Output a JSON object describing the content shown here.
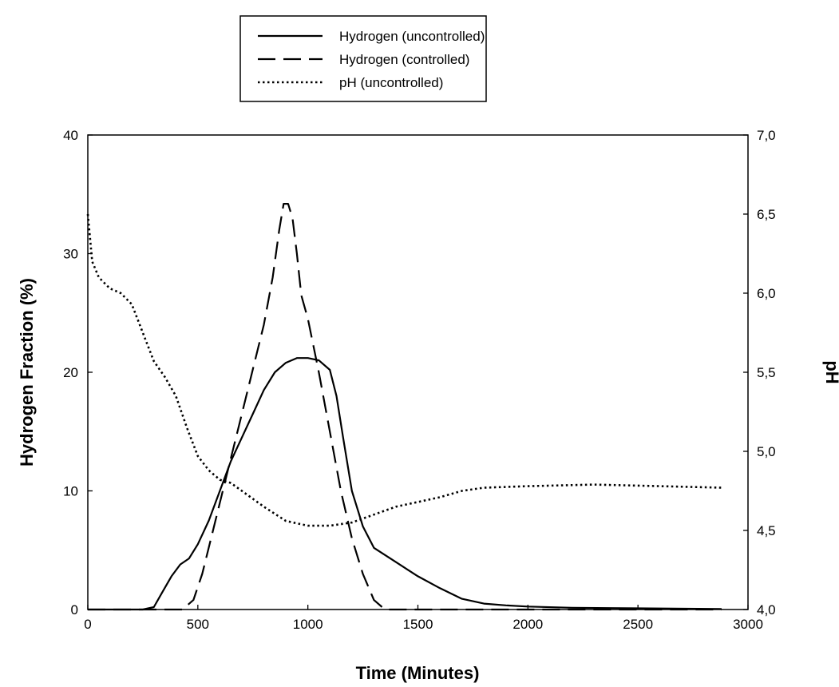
{
  "chart_data": {
    "type": "line",
    "title": "",
    "xlabel": "Time (Minutes)",
    "ylabel": "Hydrogen Fraction (%)",
    "y2label": "pH",
    "xlim": [
      0,
      3000
    ],
    "ylim": [
      0,
      40
    ],
    "y2lim": [
      4.0,
      7.0
    ],
    "xticks": [
      "0",
      "500",
      "1000",
      "1500",
      "2000",
      "2500",
      "3000"
    ],
    "yticks": [
      "0",
      "10",
      "20",
      "30",
      "40"
    ],
    "y2ticks": [
      "4,0",
      "4,5",
      "5,0",
      "5,5",
      "6,0",
      "6,5",
      "7,0"
    ],
    "grid": false,
    "legend_position": "top-center",
    "series": [
      {
        "name": "Hydrogen (uncontrolled)",
        "axis": "left",
        "style": "solid",
        "x": [
          0,
          250,
          300,
          340,
          380,
          420,
          460,
          500,
          550,
          600,
          650,
          700,
          750,
          800,
          850,
          900,
          950,
          1000,
          1050,
          1100,
          1130,
          1160,
          1200,
          1250,
          1300,
          1400,
          1500,
          1600,
          1700,
          1750,
          1800,
          1900,
          2000,
          2200,
          2500,
          2880
        ],
        "y": [
          0,
          0,
          0.2,
          1.5,
          2.8,
          3.8,
          4.3,
          5.5,
          7.5,
          10,
          12.5,
          14.5,
          16.5,
          18.5,
          20,
          20.8,
          21.2,
          21.2,
          21,
          20.2,
          18,
          14.5,
          10,
          7,
          5.2,
          4,
          2.8,
          1.8,
          0.9,
          0.7,
          0.5,
          0.35,
          0.25,
          0.15,
          0.1,
          0.05
        ]
      },
      {
        "name": "Hydrogen (controlled)",
        "axis": "left",
        "style": "dashed",
        "x": [
          0,
          430,
          480,
          520,
          560,
          600,
          640,
          680,
          720,
          760,
          800,
          840,
          870,
          890,
          910,
          930,
          950,
          970,
          1000,
          1050,
          1100,
          1150,
          1200,
          1250,
          1300,
          1350,
          1400,
          2000,
          2880
        ],
        "y": [
          0,
          0,
          0.8,
          3,
          6,
          9,
          12,
          15,
          18,
          21,
          24,
          28,
          32,
          34.2,
          34.2,
          33,
          30,
          26.5,
          24.5,
          20,
          15,
          10,
          6,
          3,
          0.8,
          0,
          0,
          0,
          0
        ]
      },
      {
        "name": "pH (uncontrolled)",
        "axis": "right",
        "style": "dotted",
        "x": [
          0,
          20,
          50,
          100,
          150,
          200,
          250,
          300,
          350,
          400,
          450,
          500,
          550,
          600,
          650,
          700,
          800,
          900,
          1000,
          1100,
          1200,
          1300,
          1400,
          1500,
          1600,
          1700,
          1800,
          2000,
          2300,
          2600,
          2880
        ],
        "y": [
          6.5,
          6.2,
          6.1,
          6.03,
          6.0,
          5.93,
          5.75,
          5.57,
          5.47,
          5.35,
          5.15,
          4.97,
          4.88,
          4.82,
          4.8,
          4.75,
          4.65,
          4.56,
          4.53,
          4.53,
          4.55,
          4.6,
          4.65,
          4.68,
          4.71,
          4.75,
          4.77,
          4.78,
          4.79,
          4.78,
          4.77
        ]
      }
    ]
  }
}
